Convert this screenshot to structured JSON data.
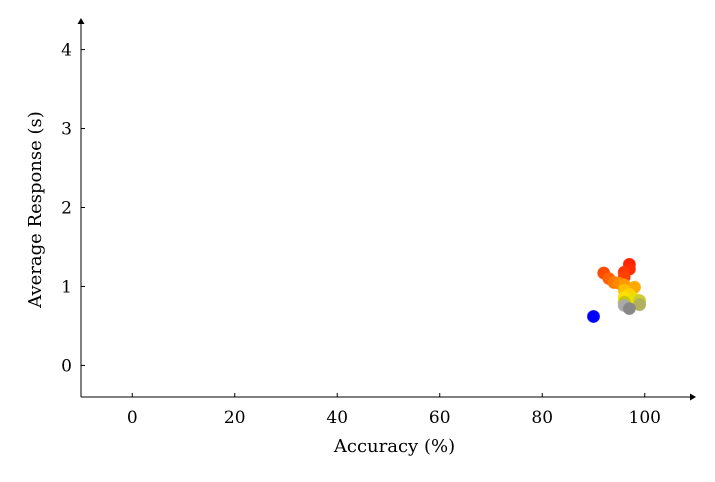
{
  "chart_data": {
    "type": "scatter",
    "title": "",
    "xlabel": "Accuracy (%)",
    "ylabel": "Average Response (s)",
    "xlim": [
      -10,
      110
    ],
    "ylim": [
      -0.4,
      4.4
    ],
    "xticks": [
      0,
      20,
      40,
      60,
      80,
      100
    ],
    "yticks": [
      0,
      1,
      2,
      3,
      4
    ],
    "grid": false,
    "legend": "none",
    "points": [
      {
        "x": 90,
        "y": 0.62,
        "color": "#0000ff"
      },
      {
        "x": 97,
        "y": 1.28,
        "color": "#ff2200"
      },
      {
        "x": 97,
        "y": 1.22,
        "color": "#ff2a00"
      },
      {
        "x": 96,
        "y": 1.18,
        "color": "#ff3500"
      },
      {
        "x": 92,
        "y": 1.17,
        "color": "#ff4a00"
      },
      {
        "x": 96,
        "y": 1.12,
        "color": "#ff4000"
      },
      {
        "x": 93,
        "y": 1.1,
        "color": "#ff6000"
      },
      {
        "x": 94,
        "y": 1.05,
        "color": "#ff7800"
      },
      {
        "x": 95,
        "y": 1.04,
        "color": "#ff8800"
      },
      {
        "x": 96,
        "y": 1.02,
        "color": "#ff9a00"
      },
      {
        "x": 98,
        "y": 0.99,
        "color": "#ffaa00"
      },
      {
        "x": 96,
        "y": 0.95,
        "color": "#ffc000"
      },
      {
        "x": 97,
        "y": 0.9,
        "color": "#ffd000"
      },
      {
        "x": 96,
        "y": 0.86,
        "color": "#ffe000"
      },
      {
        "x": 98,
        "y": 0.84,
        "color": "#e8e000"
      },
      {
        "x": 99,
        "y": 0.82,
        "color": "#cccc33"
      },
      {
        "x": 96,
        "y": 0.8,
        "color": "#c8c800"
      },
      {
        "x": 99,
        "y": 0.77,
        "color": "#b0b060"
      },
      {
        "x": 96,
        "y": 0.76,
        "color": "#aaaaaa"
      },
      {
        "x": 97,
        "y": 0.72,
        "color": "#888888"
      }
    ]
  }
}
